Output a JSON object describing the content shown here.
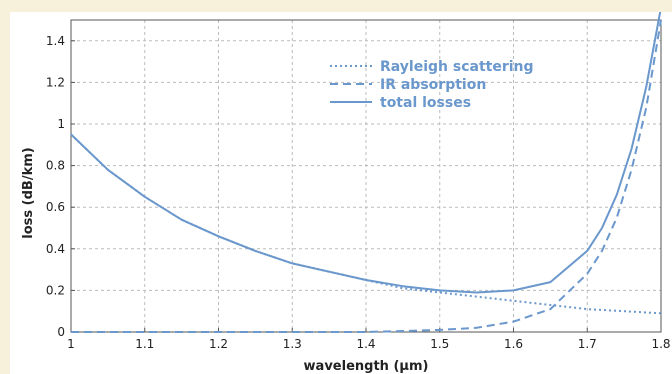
{
  "chart_data": {
    "type": "line",
    "title": "",
    "xlabel": "wavelength (μm)",
    "ylabel": "loss (dB/km)",
    "xlim": [
      1,
      1.8
    ],
    "ylim": [
      0,
      1.5
    ],
    "x_ticks": [
      "1",
      "1.1",
      "1.2",
      "1.3",
      "1.4",
      "1.5",
      "1.6",
      "1.7",
      "1.8"
    ],
    "y_ticks": [
      "0",
      "0.2",
      "0.4",
      "0.6",
      "0.8",
      "1",
      "1.2",
      "1.4"
    ],
    "grid": true,
    "legend_position": "top-right",
    "line_color": "#6a97cc",
    "series": [
      {
        "name": "Rayleigh scattering",
        "style": "dotted",
        "x": [
          1.0,
          1.05,
          1.1,
          1.15,
          1.2,
          1.25,
          1.3,
          1.35,
          1.4,
          1.45,
          1.5,
          1.55,
          1.6,
          1.65,
          1.7,
          1.75,
          1.8
        ],
        "y": [
          0.95,
          0.78,
          0.65,
          0.54,
          0.46,
          0.39,
          0.33,
          0.29,
          0.25,
          0.21,
          0.19,
          0.17,
          0.15,
          0.13,
          0.11,
          0.1,
          0.09
        ]
      },
      {
        "name": "IR absorption",
        "style": "dashed",
        "x": [
          1.0,
          1.1,
          1.2,
          1.3,
          1.4,
          1.45,
          1.5,
          1.55,
          1.6,
          1.65,
          1.7,
          1.72,
          1.74,
          1.76,
          1.78,
          1.8
        ],
        "y": [
          0.0,
          0.0,
          0.0,
          0.0,
          0.0,
          0.005,
          0.01,
          0.02,
          0.05,
          0.11,
          0.28,
          0.39,
          0.55,
          0.78,
          1.08,
          1.5
        ]
      },
      {
        "name": "total losses",
        "style": "solid",
        "x": [
          1.0,
          1.05,
          1.1,
          1.15,
          1.2,
          1.25,
          1.3,
          1.35,
          1.4,
          1.45,
          1.5,
          1.55,
          1.6,
          1.65,
          1.7,
          1.72,
          1.74,
          1.76,
          1.78,
          1.8
        ],
        "y": [
          0.95,
          0.78,
          0.65,
          0.54,
          0.46,
          0.39,
          0.33,
          0.29,
          0.25,
          0.22,
          0.2,
          0.19,
          0.2,
          0.24,
          0.39,
          0.5,
          0.66,
          0.88,
          1.18,
          1.56
        ]
      }
    ]
  }
}
